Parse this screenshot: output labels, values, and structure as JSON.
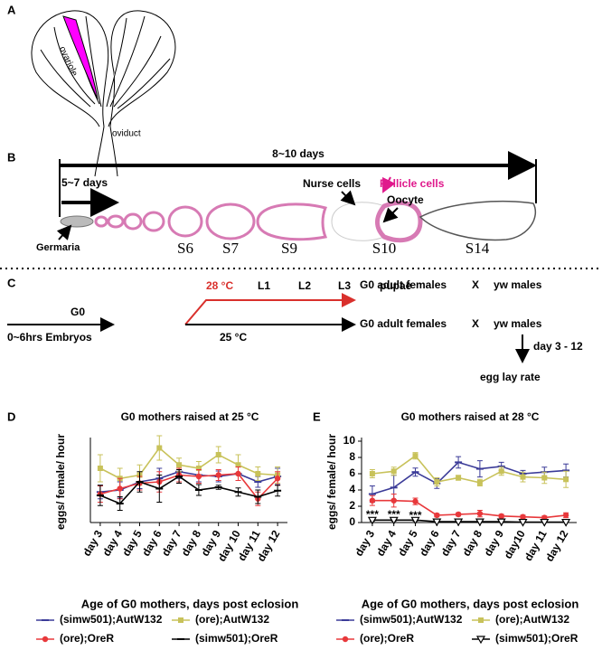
{
  "panels": {
    "a": {
      "letter": "A",
      "ovariole": "ovariole",
      "oviduct": "oviduct"
    },
    "b": {
      "letter": "B",
      "total": "8~10 days",
      "early": "5~7 days",
      "nurse": "Nurse cells",
      "follicle": "Follicle cells",
      "oocyte": "Oocyte",
      "germaria": "Germaria",
      "stages": [
        "S6",
        "S7",
        "S9",
        "S10",
        "S14"
      ]
    },
    "c": {
      "letter": "C",
      "hot": "28 °C",
      "l1": "L1",
      "l2": "L2",
      "l3": "L3",
      "pupae": "pupae",
      "adults_hot": "G0 adult females",
      "x_hot": "X",
      "males_hot": "yw males",
      "g0": "G0",
      "embryos": "0~6hrs Embryos",
      "normal": "25 °C",
      "adults_normal": "G0 adult females",
      "x_normal": "X",
      "males_normal": "yw males",
      "days": "day 3 - 12",
      "rate": "egg lay rate"
    },
    "d": {
      "letter": "D"
    },
    "e": {
      "letter": "E"
    }
  },
  "chart_data": [
    {
      "type": "line",
      "title": "G0 mothers raised at 25 °C",
      "y_label": "eggs/ female/ hour",
      "x_label": "Age of G0 mothers, days post eclosion",
      "categories": [
        "day 3",
        "day 4",
        "day 5",
        "day 6",
        "day 7",
        "day 8",
        "day 9",
        "day 10",
        "day 11",
        "day 12"
      ],
      "ylim": [
        0,
        12
      ],
      "series": [
        {
          "name": "(simw501);AutW132",
          "color": "#3b3b98",
          "marker": "dash",
          "values": [
            4.5,
            4.8,
            6.0,
            6.5,
            7.5,
            7.0,
            6.8,
            7.2,
            6.0,
            6.8
          ],
          "errors": [
            1.0,
            1.2,
            1.0,
            1.5,
            1.0,
            1.0,
            0.8,
            1.0,
            0.8,
            1.2
          ]
        },
        {
          "name": "(ore);AutW132",
          "color": "#c8c25a",
          "marker": "square",
          "values": [
            8.0,
            6.5,
            7.0,
            11.0,
            8.5,
            8.0,
            10.0,
            8.5,
            7.2,
            7.0
          ],
          "errors": [
            2.0,
            1.5,
            1.5,
            1.8,
            1.0,
            1.0,
            1.2,
            1.5,
            1.0,
            1.2
          ]
        },
        {
          "name": "(ore);OreR",
          "color": "#e8383b",
          "marker": "circle",
          "values": [
            4.2,
            5.0,
            5.8,
            6.0,
            7.0,
            6.8,
            7.0,
            7.2,
            3.5,
            6.5
          ],
          "errors": [
            1.2,
            1.5,
            1.0,
            1.5,
            1.0,
            1.0,
            0.8,
            1.0,
            1.0,
            1.0
          ]
        },
        {
          "name": "(simw501);OreR",
          "color": "#000000",
          "marker": "dash",
          "values": [
            4.0,
            2.8,
            6.0,
            5.0,
            6.8,
            4.8,
            5.2,
            4.5,
            3.8,
            4.7
          ],
          "errors": [
            1.5,
            1.0,
            1.5,
            2.0,
            1.0,
            0.8,
            0.3,
            0.6,
            1.0,
            0.8
          ]
        }
      ]
    },
    {
      "type": "line",
      "title": "G0 mothers raised at 28 °C",
      "y_label": "eggs/ female/ hour",
      "x_label": "Age of G0 mothers, days post eclosion",
      "categories": [
        "day 3",
        "day 4",
        "day 5",
        "day 6",
        "day 7",
        "day 8",
        "day 9",
        "day10",
        "day 11",
        "day 12"
      ],
      "ylim": [
        0,
        10
      ],
      "yticks": [
        0,
        2,
        4,
        6,
        8,
        10
      ],
      "annotations": [
        "***",
        "***",
        "***"
      ],
      "series": [
        {
          "name": "(simw501);AutW132",
          "color": "#3b3b98",
          "marker": "dash",
          "values": [
            3.5,
            4.3,
            6.2,
            4.8,
            7.4,
            6.6,
            6.9,
            6.0,
            6.2,
            6.4
          ],
          "errors": [
            1.0,
            1.5,
            0.5,
            0.6,
            0.7,
            1.0,
            0.5,
            0.4,
            0.6,
            0.8
          ]
        },
        {
          "name": "(ore);AutW132",
          "color": "#c8c25a",
          "marker": "square",
          "values": [
            6.0,
            6.3,
            8.2,
            5.0,
            5.5,
            4.9,
            6.3,
            5.6,
            5.5,
            5.3
          ],
          "errors": [
            0.5,
            0.5,
            0.4,
            0.5,
            0.3,
            0.4,
            0.5,
            0.6,
            0.7,
            1.0
          ]
        },
        {
          "name": "(ore);OreR",
          "color": "#e8383b",
          "marker": "circle",
          "values": [
            2.7,
            2.7,
            2.6,
            0.9,
            1.0,
            1.1,
            0.8,
            0.7,
            0.6,
            0.9
          ],
          "errors": [
            0.6,
            0.8,
            0.4,
            0.2,
            0.2,
            0.4,
            0.2,
            0.2,
            0.2,
            0.3
          ]
        },
        {
          "name": "(simw501);OreR",
          "color": "#000000",
          "marker": "triangle",
          "values": [
            0.3,
            0.3,
            0.3,
            0.1,
            0.1,
            0.1,
            0.1,
            0.05,
            0.05,
            0.05
          ],
          "errors": [
            0.1,
            0.1,
            0.1,
            0.05,
            0.05,
            0.05,
            0.05,
            0.02,
            0.02,
            0.02
          ]
        }
      ]
    }
  ]
}
